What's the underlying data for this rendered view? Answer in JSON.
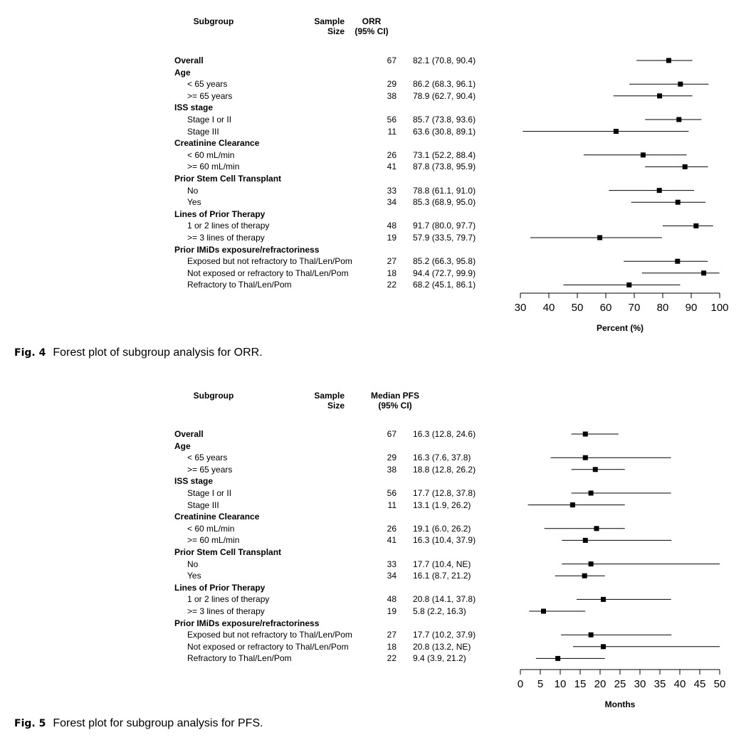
{
  "chart_data": [
    {
      "type": "forest",
      "caption_label": "Fig. 4",
      "caption_text": "Forest plot of subgroup analysis for ORR.",
      "headers": {
        "subgroup": "Subgroup",
        "n": "Sample\nSize",
        "est": "ORR\n(95% CI)"
      },
      "xlabel": "Percent (%)",
      "xlim": [
        30,
        100
      ],
      "xticks": [
        30,
        40,
        50,
        60,
        70,
        80,
        90,
        100
      ],
      "rows": [
        {
          "label": "Overall",
          "kind": "group",
          "n": "67",
          "est_text": "82.1 (70.8, 90.4)",
          "est": 82.1,
          "lo": 70.8,
          "hi": 90.4
        },
        {
          "label": "Age",
          "kind": "group"
        },
        {
          "label": "< 65 years",
          "kind": "sub",
          "n": "29",
          "est_text": "86.2 (68.3, 96.1)",
          "est": 86.2,
          "lo": 68.3,
          "hi": 96.1
        },
        {
          "label": ">= 65 years",
          "kind": "sub",
          "n": "38",
          "est_text": "78.9 (62.7, 90.4)",
          "est": 78.9,
          "lo": 62.7,
          "hi": 90.4
        },
        {
          "label": "ISS stage",
          "kind": "group"
        },
        {
          "label": "Stage I or II",
          "kind": "sub",
          "n": "56",
          "est_text": "85.7 (73.8, 93.6)",
          "est": 85.7,
          "lo": 73.8,
          "hi": 93.6
        },
        {
          "label": "Stage III",
          "kind": "sub",
          "n": "11",
          "est_text": "63.6 (30.8, 89.1)",
          "est": 63.6,
          "lo": 30.8,
          "hi": 89.1
        },
        {
          "label": "Creatinine Clearance",
          "kind": "group"
        },
        {
          "label": "< 60 mL/min",
          "kind": "sub",
          "n": "26",
          "est_text": "73.1 (52.2, 88.4)",
          "est": 73.1,
          "lo": 52.2,
          "hi": 88.4
        },
        {
          "label": ">= 60 mL/min",
          "kind": "sub",
          "n": "41",
          "est_text": "87.8 (73.8, 95.9)",
          "est": 87.8,
          "lo": 73.8,
          "hi": 95.9
        },
        {
          "label": "Prior Stem Cell Transplant",
          "kind": "group"
        },
        {
          "label": "No",
          "kind": "sub",
          "n": "33",
          "est_text": "78.8 (61.1, 91.0)",
          "est": 78.8,
          "lo": 61.1,
          "hi": 91.0
        },
        {
          "label": "Yes",
          "kind": "sub",
          "n": "34",
          "est_text": "85.3 (68.9, 95.0)",
          "est": 85.3,
          "lo": 68.9,
          "hi": 95.0
        },
        {
          "label": "Lines of Prior Therapy",
          "kind": "group"
        },
        {
          "label": "1 or 2 lines of therapy",
          "kind": "sub",
          "n": "48",
          "est_text": "91.7 (80.0, 97.7)",
          "est": 91.7,
          "lo": 80.0,
          "hi": 97.7
        },
        {
          "label": ">= 3 lines of therapy",
          "kind": "sub",
          "n": "19",
          "est_text": "57.9 (33.5, 79.7)",
          "est": 57.9,
          "lo": 33.5,
          "hi": 79.7
        },
        {
          "label": "Prior IMiDs exposure/refractoriness",
          "kind": "group"
        },
        {
          "label": "Exposed but not refractory to Thal/Len/Pom",
          "kind": "sub",
          "n": "27",
          "est_text": "85.2 (66.3, 95.8)",
          "est": 85.2,
          "lo": 66.3,
          "hi": 95.8
        },
        {
          "label": "Not exposed or refractory to Thal/Len/Pom",
          "kind": "sub",
          "n": "18",
          "est_text": "94.4 (72.7, 99.9)",
          "est": 94.4,
          "lo": 72.7,
          "hi": 99.9
        },
        {
          "label": "Refractory to Thal/Len/Pom",
          "kind": "sub",
          "n": "22",
          "est_text": "68.2 (45.1, 86.1)",
          "est": 68.2,
          "lo": 45.1,
          "hi": 86.1
        }
      ]
    },
    {
      "type": "forest",
      "caption_label": "Fig. 5",
      "caption_text": "Forest plot for subgroup analysis for PFS.",
      "headers": {
        "subgroup": "Subgroup",
        "n": "Sample\nSize",
        "est": "Median PFS\n(95% CI)"
      },
      "xlabel": "Months",
      "xlim": [
        0,
        50
      ],
      "xticks": [
        0,
        5,
        10,
        15,
        20,
        25,
        30,
        35,
        40,
        45,
        50
      ],
      "rows": [
        {
          "label": "Overall",
          "kind": "group",
          "n": "67",
          "est_text": "16.3 (12.8, 24.6)",
          "est": 16.3,
          "lo": 12.8,
          "hi": 24.6
        },
        {
          "label": "Age",
          "kind": "group"
        },
        {
          "label": "< 65 years",
          "kind": "sub",
          "n": "29",
          "est_text": "16.3 (7.6, 37.8)",
          "est": 16.3,
          "lo": 7.6,
          "hi": 37.8
        },
        {
          "label": ">= 65 years",
          "kind": "sub",
          "n": "38",
          "est_text": "18.8 (12.8, 26.2)",
          "est": 18.8,
          "lo": 12.8,
          "hi": 26.2
        },
        {
          "label": "ISS stage",
          "kind": "group"
        },
        {
          "label": "Stage I or II",
          "kind": "sub",
          "n": "56",
          "est_text": "17.7 (12.8, 37.8)",
          "est": 17.7,
          "lo": 12.8,
          "hi": 37.8
        },
        {
          "label": "Stage III",
          "kind": "sub",
          "n": "11",
          "est_text": "13.1 (1.9, 26.2)",
          "est": 13.1,
          "lo": 1.9,
          "hi": 26.2
        },
        {
          "label": "Creatinine Clearance",
          "kind": "group"
        },
        {
          "label": "< 60 mL/min",
          "kind": "sub",
          "n": "26",
          "est_text": "19.1 (6.0, 26.2)",
          "est": 19.1,
          "lo": 6.0,
          "hi": 26.2
        },
        {
          "label": ">= 60 mL/min",
          "kind": "sub",
          "n": "41",
          "est_text": "16.3 (10.4, 37.9)",
          "est": 16.3,
          "lo": 10.4,
          "hi": 37.9
        },
        {
          "label": "Prior Stem Cell Transplant",
          "kind": "group"
        },
        {
          "label": "No",
          "kind": "sub",
          "n": "33",
          "est_text": "17.7 (10.4, NE)",
          "est": 17.7,
          "lo": 10.4,
          "hi": 50
        },
        {
          "label": "Yes",
          "kind": "sub",
          "n": "34",
          "est_text": "16.1 (8.7, 21.2)",
          "est": 16.1,
          "lo": 8.7,
          "hi": 21.2
        },
        {
          "label": "Lines of Prior Therapy",
          "kind": "group"
        },
        {
          "label": "1 or 2 lines of therapy",
          "kind": "sub",
          "n": "48",
          "est_text": "20.8 (14.1, 37.8)",
          "est": 20.8,
          "lo": 14.1,
          "hi": 37.8
        },
        {
          "label": ">= 3 lines of therapy",
          "kind": "sub",
          "n": "19",
          "est_text": "5.8 (2.2, 16.3)",
          "est": 5.8,
          "lo": 2.2,
          "hi": 16.3
        },
        {
          "label": "Prior IMiDs exposure/refractoriness",
          "kind": "group"
        },
        {
          "label": "Exposed but not refractory to Thal/Len/Pom",
          "kind": "sub",
          "n": "27",
          "est_text": "17.7 (10.2, 37.9)",
          "est": 17.7,
          "lo": 10.2,
          "hi": 37.9
        },
        {
          "label": "Not exposed or refractory to Thal/Len/Pom",
          "kind": "sub",
          "n": "18",
          "est_text": "20.8 (13.2, NE)",
          "est": 20.8,
          "lo": 13.2,
          "hi": 50
        },
        {
          "label": "Refractory to Thal/Len/Pom",
          "kind": "sub",
          "n": "22",
          "est_text": "9.4 (3.9, 21.2)",
          "est": 9.4,
          "lo": 3.9,
          "hi": 21.2
        }
      ]
    }
  ]
}
